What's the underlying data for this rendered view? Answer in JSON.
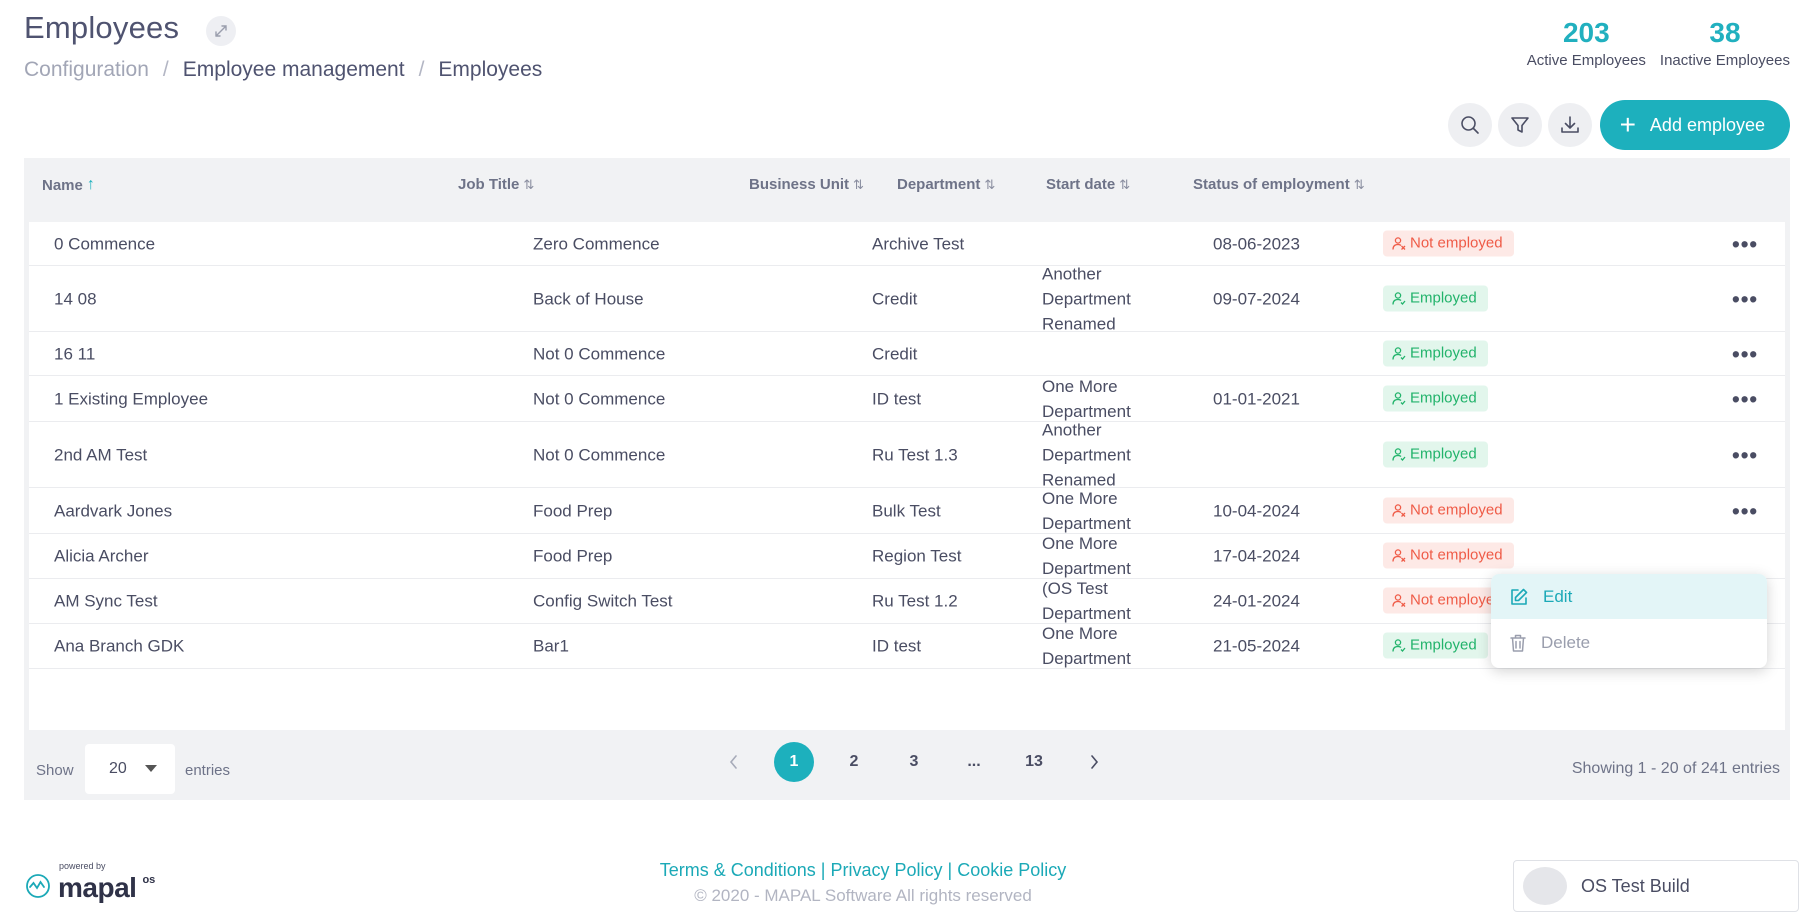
{
  "header": {
    "title": "Employees",
    "breadcrumb": [
      "Configuration",
      "Employee management",
      "Employees"
    ],
    "stats": [
      {
        "value": "203",
        "label": "Active Employees"
      },
      {
        "value": "38",
        "label": "Inactive Employees"
      }
    ],
    "add_button_label": "Add employee"
  },
  "table": {
    "columns": [
      "Name",
      "Job Title",
      "Business Unit",
      "Department",
      "Start date",
      "Status of employment"
    ],
    "sorted_column": "Name",
    "rows": [
      {
        "name": "0 Commence",
        "job": "Zero Commence",
        "bu": "Archive Test",
        "dept": "",
        "date": "08-06-2023",
        "status": "Not employed",
        "status_kind": "not"
      },
      {
        "name": "14 08",
        "job": "Back of House",
        "bu": "Credit",
        "dept": "Another Department Renamed",
        "date": "09-07-2024",
        "status": "Employed",
        "status_kind": "employed"
      },
      {
        "name": "16 11",
        "job": "Not 0 Commence",
        "bu": "Credit",
        "dept": "",
        "date": "",
        "status": "Employed",
        "status_kind": "employed"
      },
      {
        "name": "1 Existing Employee",
        "job": "Not 0 Commence",
        "bu": "ID test",
        "dept": "One More Department",
        "date": "01-01-2021",
        "status": "Employed",
        "status_kind": "employed"
      },
      {
        "name": "2nd AM Test",
        "job": "Not 0 Commence",
        "bu": "Ru Test 1.3",
        "dept": "Another Department Renamed",
        "date": "",
        "status": "Employed",
        "status_kind": "employed"
      },
      {
        "name": "Aardvark Jones",
        "job": "Food Prep",
        "bu": "Bulk Test",
        "dept": "One More Department",
        "date": "10-04-2024",
        "status": "Not employed",
        "status_kind": "not"
      },
      {
        "name": "Alicia Archer",
        "job": "Food Prep",
        "bu": "Region Test",
        "dept": "One More Department",
        "date": "17-04-2024",
        "status": "Not employed",
        "status_kind": "not"
      },
      {
        "name": "AM Sync Test",
        "job": "Config Switch Test",
        "bu": "Ru Test 1.2",
        "dept": "(OS Test Department",
        "date": "24-01-2024",
        "status": "Not employed",
        "status_kind": "not"
      },
      {
        "name": "Ana Branch GDK",
        "job": "Bar1",
        "bu": "ID test",
        "dept": "One More Department",
        "date": "21-05-2024",
        "status": "Employed",
        "status_kind": "employed"
      }
    ]
  },
  "context_menu": {
    "edit": "Edit",
    "delete": "Delete"
  },
  "pagination": {
    "show_label": "Show",
    "page_size": "20",
    "entries_label": "entries",
    "pages": [
      "1",
      "2",
      "3",
      "...",
      "13"
    ],
    "current_page": "1",
    "summary": "Showing 1 - 20 of 241 entries"
  },
  "footer": {
    "powered_by": "powered by",
    "brand": "mapal",
    "brand_suffix": "os",
    "legal_links": [
      "Terms & Conditions",
      "Privacy Policy",
      "Cookie Policy"
    ],
    "copyright": "© 2020 - MAPAL Software All rights reserved",
    "build": "OS Test Build"
  },
  "colors": {
    "accent": "#1db0bd",
    "employed_text": "#22b36b",
    "not_employed_text": "#ef5b47"
  }
}
